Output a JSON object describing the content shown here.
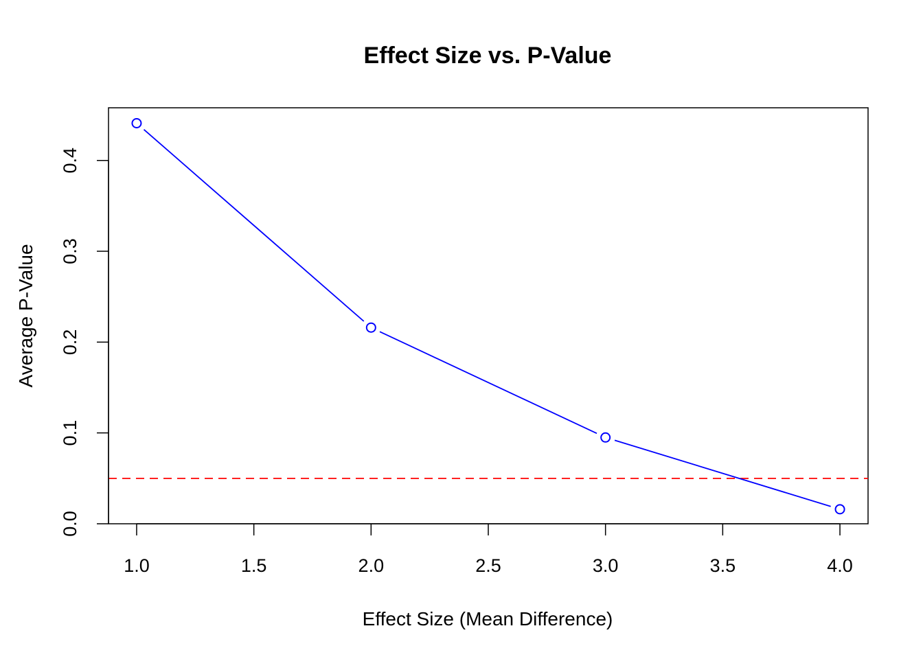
{
  "chart_data": {
    "type": "line",
    "title": "Effect Size vs. P-Value",
    "xlabel": "Effect Size (Mean Difference)",
    "ylabel": "Average P-Value",
    "xlim": [
      0.88,
      4.12
    ],
    "ylim": [
      0,
      0.458
    ],
    "x_ticks": [
      "1.0",
      "1.5",
      "2.0",
      "2.5",
      "3.0",
      "3.5",
      "4.0"
    ],
    "y_ticks": [
      "0.0",
      "0.1",
      "0.2",
      "0.3",
      "0.4"
    ],
    "series": [
      {
        "x": [
          1.0,
          2.0,
          3.0,
          4.0
        ],
        "y": [
          0.441,
          0.216,
          0.095,
          0.016
        ],
        "color": "#0000ff",
        "marker": "open-circle"
      }
    ],
    "reference_lines": [
      {
        "axis": "y",
        "value": 0.05,
        "color": "#ff0000",
        "style": "dashed"
      }
    ],
    "grid": false,
    "legend": "none"
  }
}
